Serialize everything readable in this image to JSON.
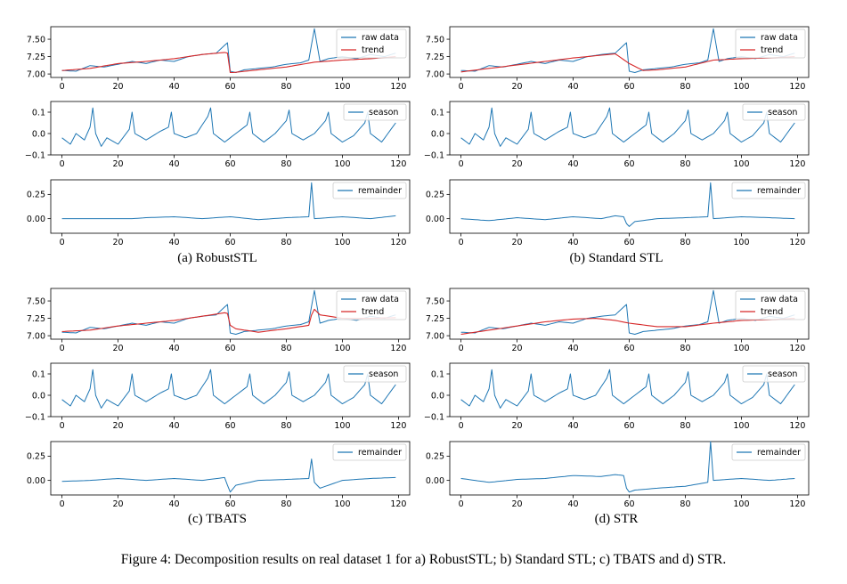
{
  "figure_caption": "Figure 4: Decomposition results on real dataset 1 for a) RobustSTL; b) Standard STL; c) TBATS and d) STR.",
  "colors": {
    "raw": "#1f77b4",
    "trend": "#d62728",
    "axis": "#000000"
  },
  "legend_labels": {
    "raw": "raw data",
    "trend": "trend",
    "season": "season",
    "remainder": "remainder"
  },
  "panels": [
    {
      "id": "a",
      "caption": "(a)  RobustSTL"
    },
    {
      "id": "b",
      "caption": "(b)  Standard STL"
    },
    {
      "id": "c",
      "caption": "(c)  TBATS"
    },
    {
      "id": "d",
      "caption": "(d)  STR"
    }
  ],
  "chart_data": {
    "type": "line",
    "x_range": [
      0,
      119
    ],
    "xlim": [
      -4,
      124
    ],
    "x_ticks": [
      0,
      20,
      40,
      60,
      80,
      100,
      120
    ],
    "rows": {
      "raw": {
        "ylim": [
          6.95,
          7.68
        ],
        "y_ticks": [
          7.0,
          7.25,
          7.5
        ],
        "y_tick_labels": [
          "7.00",
          "7.25",
          "7.50"
        ]
      },
      "season": {
        "ylim": [
          -0.1,
          0.15
        ],
        "y_ticks": [
          -0.1,
          0.0,
          0.1
        ],
        "y_tick_labels": [
          "−0.1",
          "0.0",
          "0.1"
        ]
      },
      "remainder": {
        "ylim": [
          -0.15,
          0.4
        ],
        "y_ticks": [
          0.0,
          0.25
        ],
        "y_tick_labels": [
          "0.00",
          "0.25"
        ]
      }
    },
    "raw_keypoints": [
      [
        0,
        7.05
      ],
      [
        5,
        7.04
      ],
      [
        10,
        7.12
      ],
      [
        15,
        7.1
      ],
      [
        20,
        7.14
      ],
      [
        25,
        7.18
      ],
      [
        30,
        7.15
      ],
      [
        35,
        7.2
      ],
      [
        40,
        7.18
      ],
      [
        45,
        7.25
      ],
      [
        50,
        7.28
      ],
      [
        55,
        7.3
      ],
      [
        59,
        7.45
      ],
      [
        60,
        7.04
      ],
      [
        62,
        7.02
      ],
      [
        65,
        7.06
      ],
      [
        70,
        7.08
      ],
      [
        75,
        7.1
      ],
      [
        80,
        7.14
      ],
      [
        85,
        7.16
      ],
      [
        88,
        7.2
      ],
      [
        90,
        7.65
      ],
      [
        92,
        7.18
      ],
      [
        95,
        7.22
      ],
      [
        100,
        7.25
      ],
      [
        105,
        7.22
      ],
      [
        110,
        7.28
      ],
      [
        115,
        7.25
      ],
      [
        119,
        7.3
      ]
    ],
    "season_keypoints": [
      [
        0,
        -0.02
      ],
      [
        3,
        -0.05
      ],
      [
        5,
        0.0
      ],
      [
        8,
        -0.03
      ],
      [
        10,
        0.03
      ],
      [
        11,
        0.12
      ],
      [
        12,
        0.0
      ],
      [
        14,
        -0.06
      ],
      [
        16,
        -0.02
      ],
      [
        20,
        -0.05
      ],
      [
        24,
        0.02
      ],
      [
        25,
        0.1
      ],
      [
        26,
        0.0
      ],
      [
        30,
        -0.03
      ],
      [
        35,
        0.01
      ],
      [
        38,
        0.03
      ],
      [
        39,
        0.1
      ],
      [
        40,
        0.0
      ],
      [
        44,
        -0.02
      ],
      [
        48,
        0.0
      ],
      [
        52,
        0.08
      ],
      [
        53,
        0.12
      ],
      [
        54,
        0.0
      ],
      [
        58,
        -0.04
      ],
      [
        62,
        0.0
      ],
      [
        66,
        0.04
      ],
      [
        67,
        0.1
      ],
      [
        68,
        0.0
      ],
      [
        72,
        -0.04
      ],
      [
        76,
        0.0
      ],
      [
        80,
        0.06
      ],
      [
        81,
        0.11
      ],
      [
        82,
        0.0
      ],
      [
        86,
        -0.03
      ],
      [
        90,
        0.0
      ],
      [
        94,
        0.06
      ],
      [
        95,
        0.1
      ],
      [
        96,
        0.0
      ],
      [
        100,
        -0.04
      ],
      [
        104,
        -0.01
      ],
      [
        108,
        0.05
      ],
      [
        109,
        0.1
      ],
      [
        110,
        0.0
      ],
      [
        114,
        -0.04
      ],
      [
        119,
        0.05
      ]
    ],
    "remainder_keypoints": [
      [
        0,
        0.0
      ],
      [
        25,
        0.0
      ],
      [
        30,
        0.01
      ],
      [
        40,
        0.02
      ],
      [
        50,
        0.0
      ],
      [
        60,
        0.02
      ],
      [
        70,
        -0.01
      ],
      [
        80,
        0.01
      ],
      [
        88,
        0.02
      ],
      [
        89,
        0.37
      ],
      [
        90,
        0.0
      ],
      [
        100,
        0.02
      ],
      [
        110,
        0.0
      ],
      [
        119,
        0.03
      ]
    ],
    "series": [
      {
        "panel": "a",
        "name": "trend",
        "keypoints": [
          [
            0,
            7.05
          ],
          [
            10,
            7.08
          ],
          [
            20,
            7.15
          ],
          [
            30,
            7.18
          ],
          [
            40,
            7.22
          ],
          [
            50,
            7.28
          ],
          [
            58,
            7.31
          ],
          [
            59,
            7.3
          ],
          [
            60,
            7.02
          ],
          [
            61,
            7.02
          ],
          [
            70,
            7.06
          ],
          [
            80,
            7.1
          ],
          [
            90,
            7.17
          ],
          [
            100,
            7.2
          ],
          [
            110,
            7.22
          ],
          [
            119,
            7.25
          ]
        ],
        "remainder_keypoints": [
          [
            0,
            0.0
          ],
          [
            25,
            0.0
          ],
          [
            30,
            0.01
          ],
          [
            40,
            0.02
          ],
          [
            50,
            0.0
          ],
          [
            60,
            0.02
          ],
          [
            70,
            -0.01
          ],
          [
            80,
            0.01
          ],
          [
            88,
            0.02
          ],
          [
            89,
            0.37
          ],
          [
            90,
            0.0
          ],
          [
            100,
            0.02
          ],
          [
            110,
            0.0
          ],
          [
            119,
            0.03
          ]
        ]
      },
      {
        "panel": "b",
        "name": "trend",
        "keypoints": [
          [
            0,
            7.03
          ],
          [
            10,
            7.08
          ],
          [
            20,
            7.13
          ],
          [
            30,
            7.18
          ],
          [
            40,
            7.23
          ],
          [
            50,
            7.27
          ],
          [
            55,
            7.29
          ],
          [
            60,
            7.15
          ],
          [
            65,
            7.05
          ],
          [
            70,
            7.06
          ],
          [
            80,
            7.1
          ],
          [
            90,
            7.2
          ],
          [
            100,
            7.22
          ],
          [
            110,
            7.23
          ],
          [
            119,
            7.25
          ]
        ],
        "remainder_keypoints": [
          [
            0,
            0.0
          ],
          [
            10,
            -0.02
          ],
          [
            20,
            0.01
          ],
          [
            30,
            -0.01
          ],
          [
            40,
            0.02
          ],
          [
            50,
            0.0
          ],
          [
            55,
            0.03
          ],
          [
            58,
            0.02
          ],
          [
            59,
            -0.05
          ],
          [
            60,
            -0.08
          ],
          [
            62,
            -0.03
          ],
          [
            70,
            0.0
          ],
          [
            80,
            0.01
          ],
          [
            88,
            0.02
          ],
          [
            89,
            0.37
          ],
          [
            90,
            0.0
          ],
          [
            100,
            0.02
          ],
          [
            110,
            0.01
          ],
          [
            119,
            0.0
          ]
        ]
      },
      {
        "panel": "c",
        "name": "trend",
        "keypoints": [
          [
            0,
            7.06
          ],
          [
            10,
            7.08
          ],
          [
            20,
            7.14
          ],
          [
            30,
            7.18
          ],
          [
            40,
            7.22
          ],
          [
            50,
            7.28
          ],
          [
            58,
            7.33
          ],
          [
            59,
            7.32
          ],
          [
            60,
            7.15
          ],
          [
            62,
            7.1
          ],
          [
            70,
            7.05
          ],
          [
            80,
            7.1
          ],
          [
            88,
            7.15
          ],
          [
            89,
            7.3
          ],
          [
            90,
            7.38
          ],
          [
            92,
            7.3
          ],
          [
            100,
            7.25
          ],
          [
            110,
            7.25
          ],
          [
            119,
            7.26
          ]
        ],
        "remainder_keypoints": [
          [
            0,
            -0.01
          ],
          [
            10,
            0.0
          ],
          [
            20,
            0.02
          ],
          [
            30,
            0.0
          ],
          [
            40,
            0.02
          ],
          [
            50,
            0.0
          ],
          [
            58,
            0.03
          ],
          [
            59,
            -0.05
          ],
          [
            60,
            -0.12
          ],
          [
            62,
            -0.05
          ],
          [
            70,
            0.0
          ],
          [
            80,
            0.01
          ],
          [
            88,
            0.02
          ],
          [
            89,
            0.22
          ],
          [
            90,
            -0.02
          ],
          [
            92,
            -0.08
          ],
          [
            100,
            0.0
          ],
          [
            110,
            0.02
          ],
          [
            119,
            0.03
          ]
        ]
      },
      {
        "panel": "d",
        "name": "trend",
        "keypoints": [
          [
            0,
            7.02
          ],
          [
            10,
            7.08
          ],
          [
            20,
            7.14
          ],
          [
            30,
            7.2
          ],
          [
            40,
            7.24
          ],
          [
            48,
            7.25
          ],
          [
            55,
            7.22
          ],
          [
            60,
            7.18
          ],
          [
            70,
            7.13
          ],
          [
            80,
            7.13
          ],
          [
            90,
            7.18
          ],
          [
            100,
            7.22
          ],
          [
            110,
            7.23
          ],
          [
            119,
            7.25
          ]
        ],
        "remainder_keypoints": [
          [
            0,
            0.02
          ],
          [
            10,
            -0.02
          ],
          [
            20,
            0.01
          ],
          [
            30,
            0.02
          ],
          [
            40,
            0.05
          ],
          [
            50,
            0.04
          ],
          [
            55,
            0.06
          ],
          [
            58,
            0.05
          ],
          [
            59,
            -0.08
          ],
          [
            60,
            -0.12
          ],
          [
            62,
            -0.1
          ],
          [
            70,
            -0.08
          ],
          [
            80,
            -0.06
          ],
          [
            88,
            -0.02
          ],
          [
            89,
            0.4
          ],
          [
            90,
            0.0
          ],
          [
            100,
            0.02
          ],
          [
            110,
            0.0
          ],
          [
            119,
            0.02
          ]
        ]
      }
    ]
  }
}
